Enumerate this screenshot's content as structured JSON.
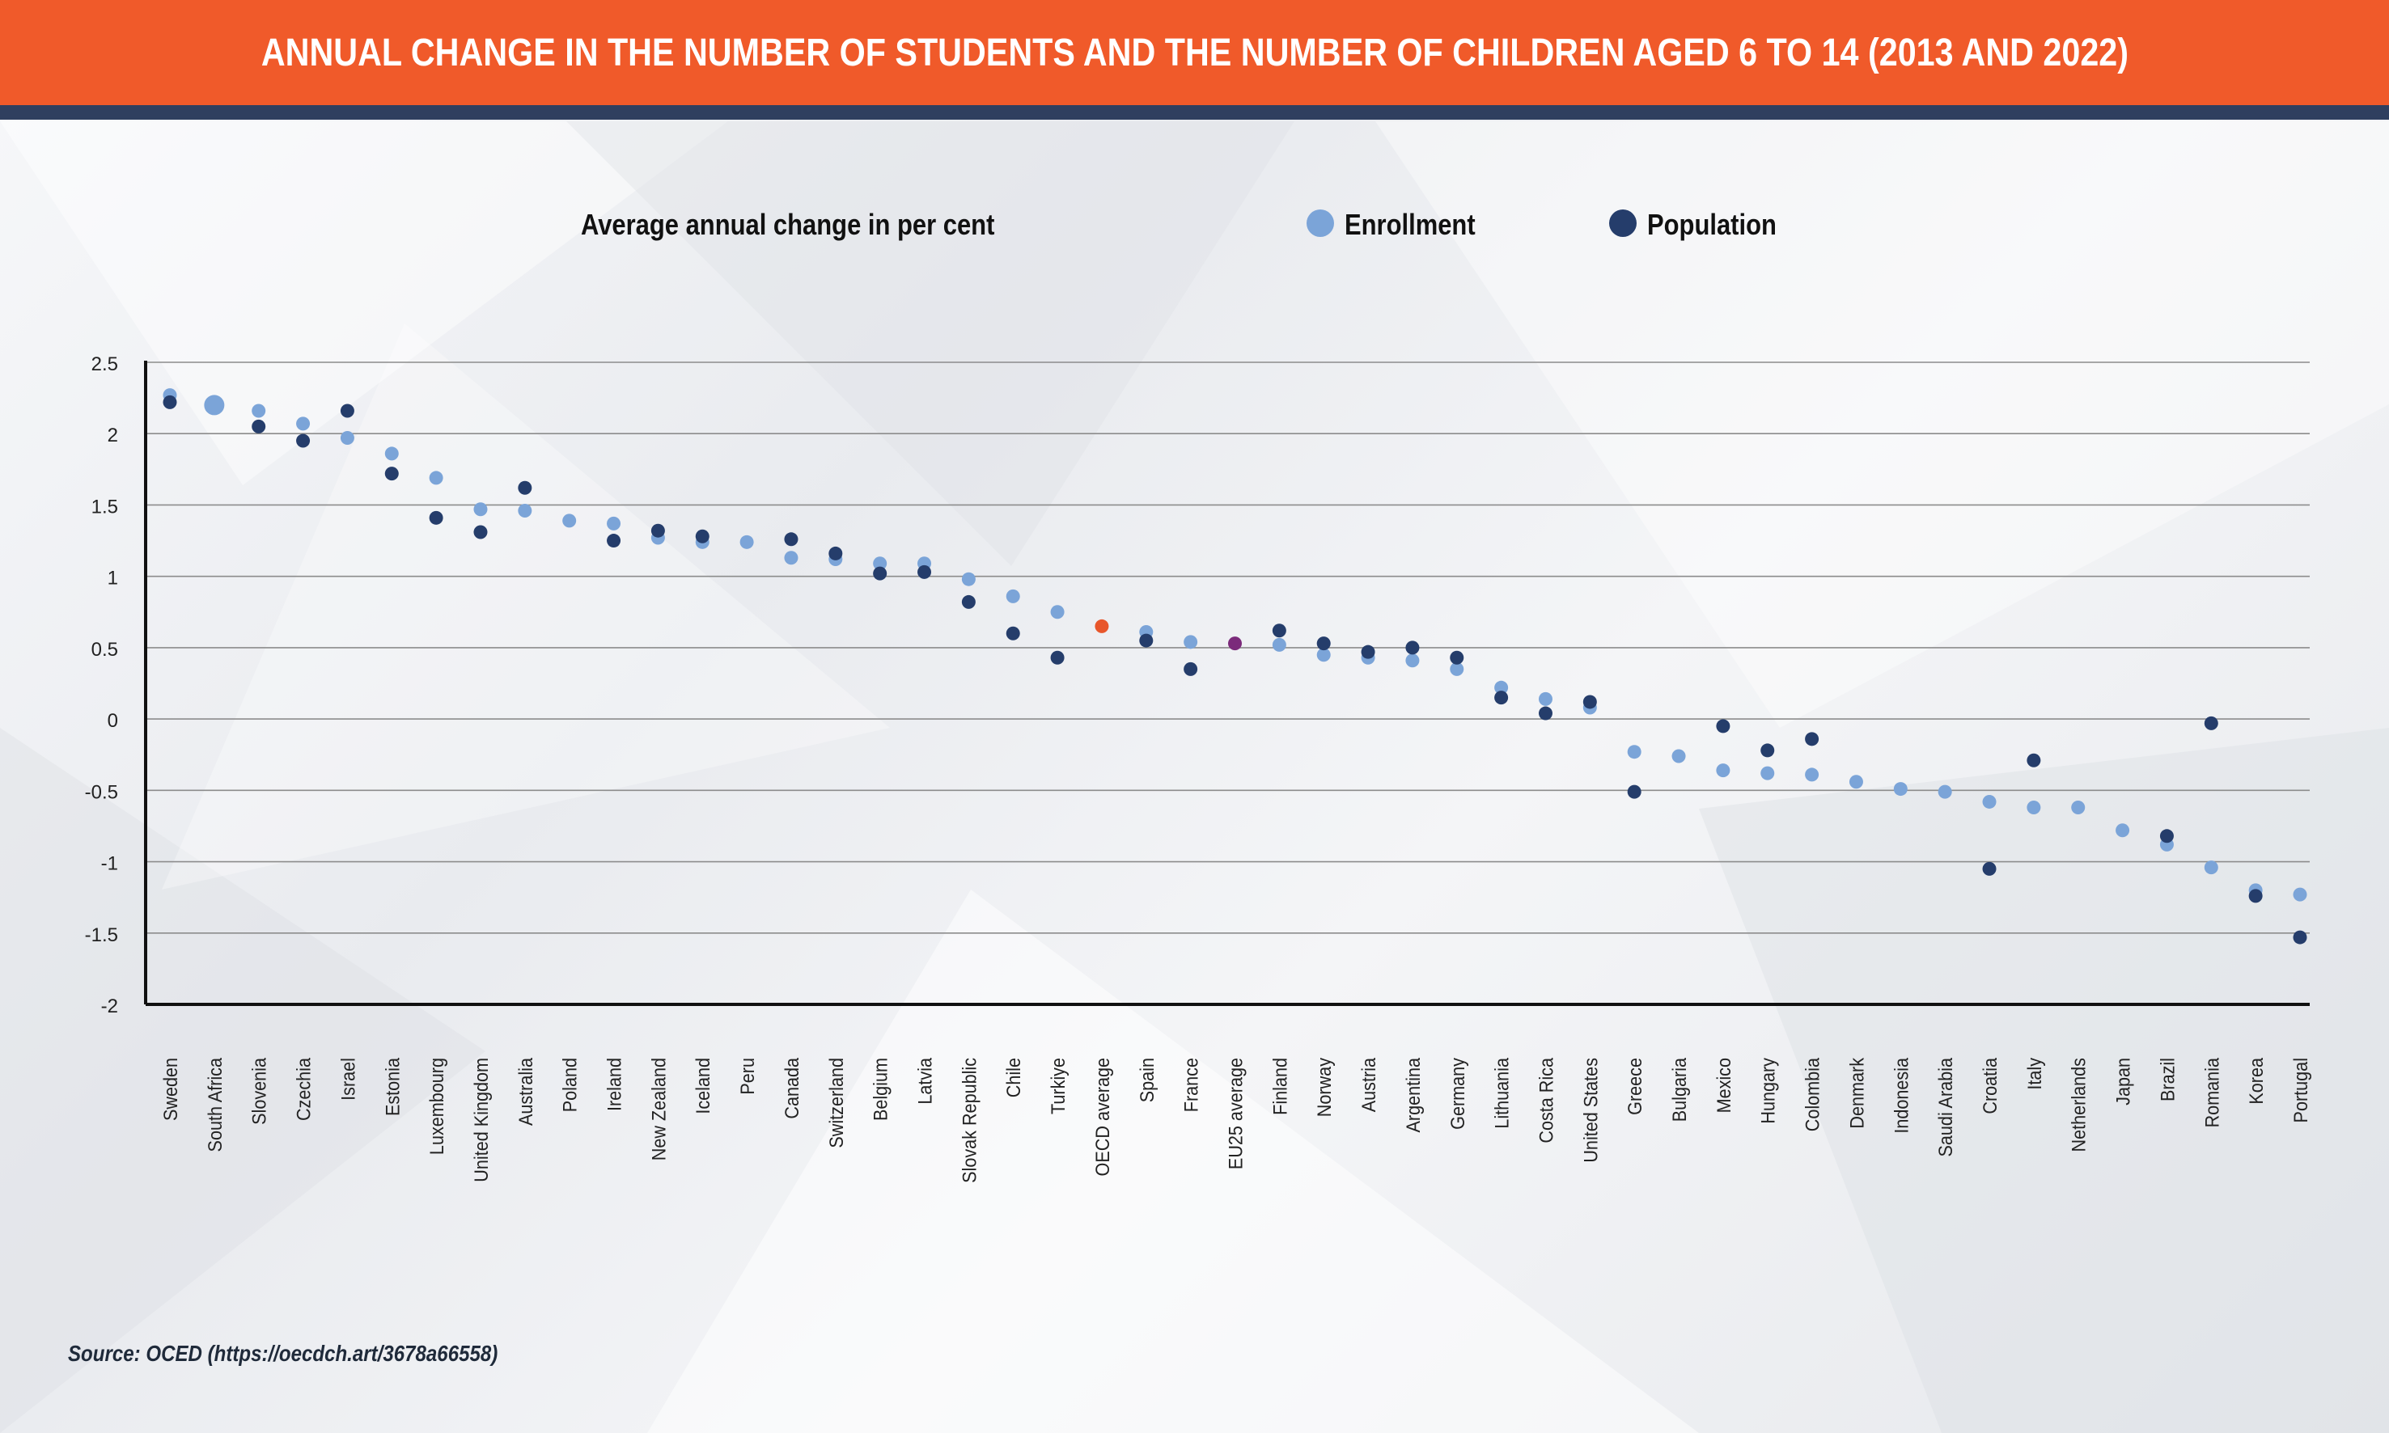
{
  "header": {
    "title": "ANNUAL CHANGE IN THE NUMBER OF STUDENTS AND THE NUMBER OF CHILDREN AGED 6 TO 14 (2013 AND 2022)",
    "band_color": "#f05a2a",
    "rule_color": "#2f3f5f"
  },
  "source": "Source: OCED (https://oecdch.art/3678a66558)",
  "colors": {
    "enrollment": "#7ba4d8",
    "population": "#253d6b",
    "oecd_average": "#e8562b",
    "eu25_average": "#7b2a7b",
    "axis": "#111111",
    "grid": "#8c8c8c"
  },
  "chart_data": {
    "type": "scatter",
    "subtitle": "Average annual change in per cent",
    "legend_position": "top-right",
    "grid": true,
    "ylim": [
      -2,
      2.5
    ],
    "yticks": [
      2.5,
      2,
      1.5,
      1,
      0.5,
      0,
      -0.5,
      -1,
      -1.5,
      -2
    ],
    "ytick_labels": [
      "2.5",
      "2",
      "1.5",
      "1",
      "0.5",
      "0",
      "-0.5",
      "-1",
      "-1.5",
      "-2"
    ],
    "categories": [
      "Sweden",
      "South Africa",
      "Slovenia",
      "Czechia",
      "Israel",
      "Estonia",
      "Luxembourg",
      "United Kingdom",
      "Australia",
      "Poland",
      "Ireland",
      "New Zealand",
      "Iceland",
      "Peru",
      "Canada",
      "Switzerland",
      "Belgium",
      "Latvia",
      "Slovak Republic",
      "Chile",
      "Turkiye",
      "OECD average",
      "Spain",
      "France",
      "EU25 average",
      "Finland",
      "Norway",
      "Austria",
      "Argentina",
      "Germany",
      "Lithuania",
      "Costa Rica",
      "United States",
      "Greece",
      "Bulgaria",
      "Mexico",
      "Hungary",
      "Colombia",
      "Denmark",
      "Indonesia",
      "Saudi Arabia",
      "Croatia",
      "Italy",
      "Netherlands",
      "Japan",
      "Brazil",
      "Romania",
      "Korea",
      "Portugal"
    ],
    "series": [
      {
        "name": "Enrollment",
        "values": [
          2.27,
          2.2,
          2.16,
          2.07,
          1.97,
          1.86,
          1.69,
          1.47,
          1.46,
          1.39,
          1.37,
          1.27,
          1.24,
          1.24,
          1.13,
          1.12,
          1.09,
          1.09,
          0.98,
          0.86,
          0.75,
          null,
          0.61,
          0.54,
          null,
          0.52,
          0.45,
          0.43,
          0.41,
          0.35,
          0.22,
          0.14,
          0.08,
          -0.23,
          -0.26,
          -0.36,
          -0.38,
          -0.39,
          -0.44,
          -0.49,
          -0.51,
          -0.58,
          -0.62,
          -0.62,
          -0.78,
          -0.88,
          -1.04,
          -1.2,
          -1.23
        ]
      },
      {
        "name": "Population",
        "values": [
          2.22,
          null,
          2.05,
          1.95,
          2.16,
          1.72,
          1.41,
          1.31,
          1.62,
          null,
          1.25,
          1.32,
          1.28,
          null,
          1.26,
          1.16,
          1.02,
          1.03,
          0.82,
          0.6,
          0.43,
          null,
          0.55,
          0.35,
          null,
          0.62,
          0.53,
          0.47,
          0.5,
          0.43,
          0.15,
          0.04,
          0.12,
          -0.51,
          null,
          -0.05,
          -0.22,
          -0.14,
          null,
          null,
          null,
          -1.05,
          -0.29,
          null,
          null,
          -0.82,
          -0.03,
          -1.24,
          -1.53
        ]
      },
      {
        "name": "OECD average",
        "values": [
          null,
          null,
          null,
          null,
          null,
          null,
          null,
          null,
          null,
          null,
          null,
          null,
          null,
          null,
          null,
          null,
          null,
          null,
          null,
          null,
          null,
          0.65,
          null,
          null,
          null,
          null,
          null,
          null,
          null,
          null,
          null,
          null,
          null,
          null,
          null,
          null,
          null,
          null,
          null,
          null,
          null,
          null,
          null,
          null,
          null,
          null,
          null,
          null,
          null
        ]
      },
      {
        "name": "EU25 average",
        "values": [
          null,
          null,
          null,
          null,
          null,
          null,
          null,
          null,
          null,
          null,
          null,
          null,
          null,
          null,
          null,
          null,
          null,
          null,
          null,
          null,
          null,
          null,
          null,
          null,
          0.53,
          null,
          null,
          null,
          null,
          null,
          null,
          null,
          null,
          null,
          null,
          null,
          null,
          null,
          null,
          null,
          null,
          null,
          null,
          null,
          null,
          null,
          null,
          null,
          null
        ]
      }
    ],
    "legend": [
      {
        "label": "Enrollment"
      },
      {
        "label": "Population"
      }
    ]
  }
}
